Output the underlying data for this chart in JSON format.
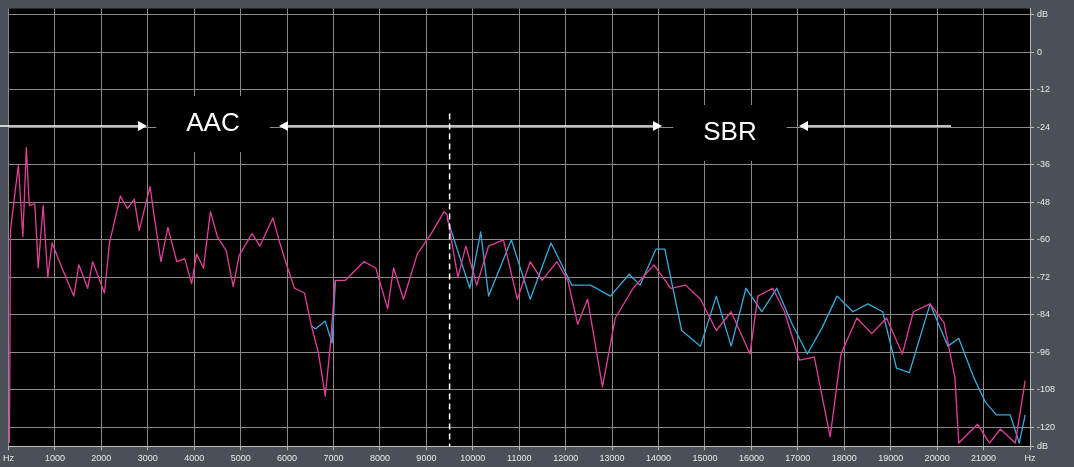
{
  "chart_data": {
    "type": "line",
    "annotations": [
      "AAC",
      "SBR"
    ],
    "xlim": [
      0,
      22000
    ],
    "xticks": [
      {
        "value": 0,
        "label": "Hz"
      },
      1000,
      2000,
      3000,
      4000,
      5000,
      6000,
      7000,
      8000,
      9000,
      10000,
      11000,
      12000,
      13000,
      14000,
      15000,
      16000,
      17000,
      18000,
      19000,
      20000,
      21000,
      {
        "value": 22000,
        "label": "Hz"
      }
    ],
    "ylim": [
      -126,
      14
    ],
    "yticks": [
      {
        "value": -126,
        "label": "dB"
      },
      -120,
      -108,
      -96,
      -84,
      -72,
      -60,
      -48,
      -36,
      -24,
      -12,
      0,
      {
        "value": 12,
        "label": "dB"
      }
    ],
    "grid": true,
    "legend": false,
    "marker": "none",
    "line_style": "solid",
    "ref_lines": [
      {
        "axis": "x",
        "value": 9500,
        "color": "#ffffff",
        "line_style": "dashed"
      }
    ],
    "series": [
      {
        "color": "#3aaad8",
        "x": [
          6524,
          6610,
          6820,
          6970,
          7040,
          7250,
          7650,
          7910,
          8170,
          8290,
          8510,
          8800,
          9100,
          9380,
          9445,
          9935,
          10170,
          10340,
          10830,
          11236,
          11683,
          12131,
          12536,
          12963,
          13368,
          13602,
          13943,
          14135,
          14498,
          14903,
          15244,
          15564,
          15883,
          16225,
          16545,
          16864,
          17205,
          17525,
          17845,
          18186,
          18506,
          18826,
          19124,
          19401,
          19849,
          20233,
          20467,
          20787,
          21043,
          21277,
          21576,
          21768,
          21896
        ],
        "values": [
          -87.5,
          -88.5,
          -86,
          -93,
          -73,
          null,
          null,
          null,
          null,
          null,
          null,
          null,
          null,
          null,
          -53,
          -75.5,
          -57.5,
          -78,
          -60,
          -79,
          -61,
          -74.5,
          -74.5,
          -78,
          -71,
          -74.5,
          -63,
          -63,
          -89,
          -94,
          -78,
          -94,
          -75.5,
          -83,
          -75.5,
          -86.5,
          -96.5,
          -88,
          -78,
          -83,
          -80.5,
          -83,
          -101,
          -102.5,
          -80.5,
          -94,
          -91.5,
          -104,
          -112,
          -116,
          -116,
          -125,
          -116
        ]
      },
      {
        "color": "#e0409a",
        "x": [
          21,
          43,
          213,
          309,
          384,
          448,
          567,
          640,
          746,
          846,
          938,
          1151,
          1407,
          1514,
          1706,
          1812,
          2068,
          2175,
          2409,
          2558,
          2708,
          2814,
          3049,
          3134,
          3283,
          3433,
          3624,
          3795,
          3944,
          4051,
          4200,
          4349,
          4499,
          4690,
          4840,
          4968,
          5245,
          5415,
          5692,
          5863,
          6012,
          6161,
          6375,
          6524,
          6673,
          6822,
          6929,
          7036,
          7249,
          7654,
          7910,
          8166,
          8293,
          8507,
          8805,
          9104,
          9381,
          9445,
          9679,
          9850,
          10084,
          10340,
          10660,
          10958,
          11236,
          11491,
          11811,
          12046,
          12259,
          12472,
          12792,
          13069,
          13453,
          13901,
          14263,
          14583,
          14903,
          15244,
          15564,
          15969,
          16139,
          16459,
          16715,
          17035,
          17355,
          17696,
          17930,
          18271,
          18591,
          18911,
          19252,
          19487,
          19849,
          20147,
          20382,
          20467,
          20872,
          21128,
          21363,
          21683,
          21896
        ],
        "values": [
          -125,
          -57,
          -36,
          -59,
          -30.5,
          -49,
          -48.5,
          -69,
          -49,
          -72,
          -61,
          -69,
          -78,
          -68,
          -75.5,
          -67,
          -77,
          -61,
          -46,
          -50,
          -47,
          -57,
          -43,
          -52,
          -67,
          -56,
          -67,
          -66,
          -74,
          -64.5,
          -69,
          -51,
          -59,
          -63.5,
          -75,
          -65,
          -58,
          -62,
          -53,
          -62,
          -69,
          -75.5,
          -77,
          -87.5,
          -96,
          -110,
          -94,
          -73,
          -73,
          -67,
          -69,
          -82,
          -69,
          -79,
          -64.5,
          -58,
          -51,
          -52,
          -72,
          -62,
          -74.5,
          -62,
          -60,
          -79,
          -67,
          -73,
          -67,
          -73,
          -87,
          -79,
          -107,
          -85,
          -75.5,
          -68,
          -75.5,
          -74.5,
          -79,
          -89,
          -83,
          -96.5,
          -78,
          -75.5,
          -83,
          -98.5,
          -97.5,
          -123,
          -96.5,
          -85,
          -90,
          -85,
          -96.5,
          -83,
          -80.5,
          -86.5,
          -104,
          -125,
          -119,
          -125,
          -120.5,
          -125,
          -105
        ]
      }
    ]
  }
}
